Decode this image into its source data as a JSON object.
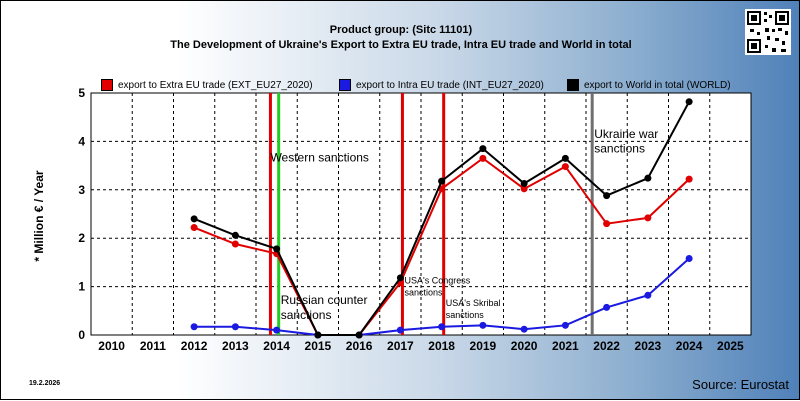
{
  "title_line1": "Product group:  (Sitc 11101)",
  "title_line2": "The Development of Ukraine's Export to Extra EU trade, Intra EU trade and World in total",
  "date": "19.2.2026",
  "source": "Source: Eurostat",
  "chart_data": {
    "type": "line",
    "ylabel": "* Million € / Year",
    "ylim": [
      0,
      5
    ],
    "yticks": [
      0,
      1,
      2,
      3,
      4,
      5
    ],
    "grid": true,
    "legend_position": "top",
    "x": [
      "2010",
      "2011",
      "2012",
      "2013",
      "2014",
      "2015",
      "2016",
      "2017",
      "2018",
      "2019",
      "2020",
      "2021",
      "2022",
      "2023",
      "2024",
      "2025"
    ],
    "series": [
      {
        "name": "export to Extra EU trade (EXT_EU27_2020)",
        "color": "#e00000",
        "values": [
          null,
          null,
          2.22,
          1.88,
          1.68,
          0.0,
          0.0,
          1.08,
          3.02,
          3.65,
          3.02,
          3.48,
          2.3,
          2.42,
          3.22,
          null
        ]
      },
      {
        "name": "export to Intra EU trade (INT_EU27_2020)",
        "color": "#1a1ae0",
        "values": [
          null,
          null,
          0.17,
          0.17,
          0.1,
          0.0,
          0.0,
          0.1,
          0.17,
          0.2,
          0.12,
          0.2,
          0.57,
          0.82,
          1.58,
          null
        ]
      },
      {
        "name": "export to World in total (WORLD)",
        "color": "#000000",
        "values": [
          null,
          null,
          2.4,
          2.06,
          1.78,
          0.0,
          0.0,
          1.18,
          3.18,
          3.85,
          3.13,
          3.65,
          2.88,
          3.24,
          4.82,
          null
        ]
      }
    ],
    "events": [
      {
        "year": 2013.85,
        "color": "#e00000"
      },
      {
        "year": 2014.05,
        "color": "#22cc22"
      },
      {
        "year": 2017.05,
        "color": "#e00000"
      },
      {
        "year": 2018.05,
        "color": "#e00000"
      },
      {
        "year": 2021.65,
        "color": "#707070"
      }
    ],
    "annotations": [
      {
        "text": "Western sanctions",
        "year": 2013.85,
        "y": 3.58
      },
      {
        "text": "Russian counter",
        "year": 2014.1,
        "y": 0.64
      },
      {
        "text": "sanctions",
        "year": 2014.1,
        "y": 0.33
      },
      {
        "text": "USA's Congress",
        "year": 2017.1,
        "y": 1.06,
        "small": true
      },
      {
        "text": "sanctions",
        "year": 2017.1,
        "y": 0.82,
        "small": true
      },
      {
        "text": "USA's Skribal",
        "year": 2018.1,
        "y": 0.6,
        "small": true
      },
      {
        "text": "sanctions",
        "year": 2018.1,
        "y": 0.35,
        "small": true
      },
      {
        "text": "Ukraine war",
        "year": 2021.7,
        "y": 4.07
      },
      {
        "text": "sanctions",
        "year": 2021.7,
        "y": 3.77
      }
    ]
  }
}
